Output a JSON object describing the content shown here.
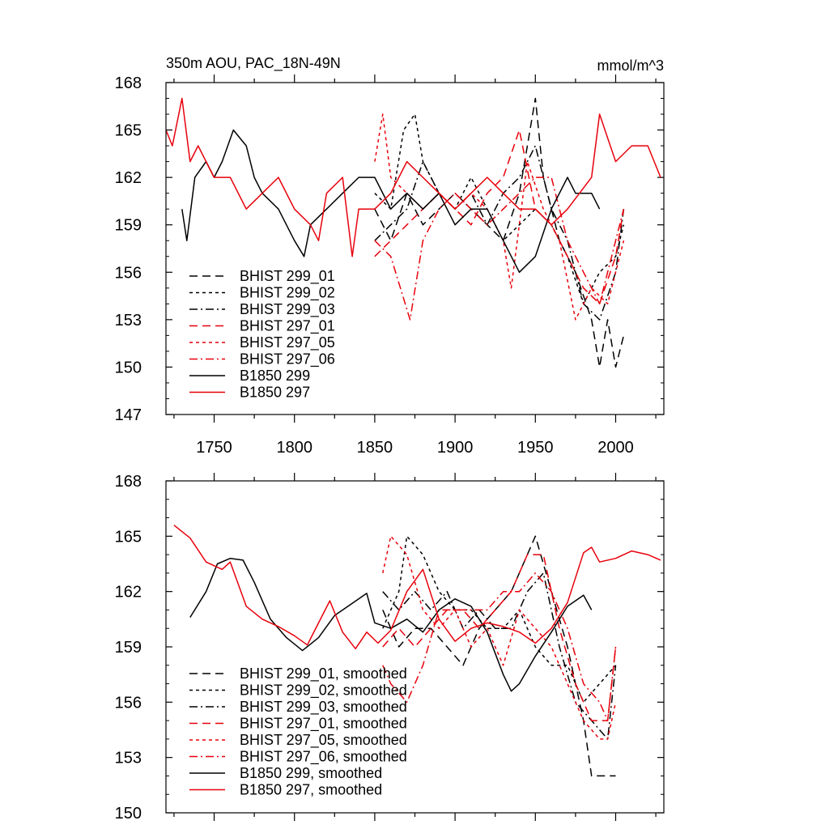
{
  "chart_data": [
    {
      "type": "line",
      "title": "350m AOU, PAC_18N-49N",
      "units": "mmol/m^3",
      "xlim": [
        1720,
        2030
      ],
      "ylim": [
        147,
        168
      ],
      "yticks": [
        147,
        150,
        153,
        156,
        159,
        162,
        165,
        168
      ],
      "yticks_labels": [
        "147",
        "150",
        "153",
        "156",
        "159",
        "162",
        "165",
        "168"
      ],
      "xticks": [
        1750,
        1800,
        1850,
        1900,
        1950,
        2000
      ],
      "xticks_labels": [
        "1750",
        "1800",
        "1850",
        "1900",
        "1950",
        "2000"
      ],
      "legend_position": "bottom-left",
      "series": [
        {
          "name": "BHIST 299_01",
          "color": "#000000",
          "dash": "long-dash",
          "x": [
            1850,
            1860,
            1870,
            1880,
            1890,
            1900,
            1910,
            1920,
            1930,
            1940,
            1950,
            1955,
            1965,
            1975,
            1985,
            1990,
            1995,
            2000,
            2005
          ],
          "y": [
            160,
            158,
            161,
            159,
            160,
            161,
            160,
            159,
            158,
            161,
            167,
            162,
            158,
            156,
            153,
            150,
            153,
            150,
            152
          ]
        },
        {
          "name": "BHIST 299_02",
          "color": "#000000",
          "dash": "short-dash",
          "x": [
            1850,
            1860,
            1868,
            1875,
            1880,
            1890,
            1900,
            1910,
            1920,
            1930,
            1940,
            1950,
            1960,
            1970,
            1980,
            1990,
            2000,
            2005
          ],
          "y": [
            161,
            160,
            165,
            166,
            163,
            161,
            160,
            162,
            160,
            158,
            159,
            160,
            159,
            157,
            154,
            156,
            157,
            159
          ]
        },
        {
          "name": "BHIST 299_03",
          "color": "#000000",
          "dash": "dash-dot",
          "x": [
            1850,
            1860,
            1870,
            1880,
            1890,
            1900,
            1910,
            1920,
            1930,
            1940,
            1950,
            1960,
            1970,
            1980,
            1990,
            2000,
            2005
          ],
          "y": [
            158,
            159,
            160,
            163,
            161,
            160,
            161,
            159,
            161,
            162,
            164,
            160,
            158,
            154,
            153,
            156,
            160
          ]
        },
        {
          "name": "BHIST 297_01",
          "color": "#e8000b",
          "dash": "long-dash",
          "x": [
            1850,
            1860,
            1870,
            1880,
            1890,
            1900,
            1910,
            1920,
            1930,
            1940,
            1950,
            1960,
            1970,
            1980,
            1990,
            2000,
            2005
          ],
          "y": [
            157,
            158,
            159,
            160,
            161,
            160,
            159,
            161,
            162,
            165,
            160,
            159,
            157,
            155,
            154,
            157,
            160
          ]
        },
        {
          "name": "BHIST 297_05",
          "color": "#e8000b",
          "dash": "short-dash",
          "x": [
            1850,
            1855,
            1860,
            1870,
            1880,
            1890,
            1900,
            1910,
            1920,
            1930,
            1935,
            1945,
            1955,
            1965,
            1975,
            1985,
            1995,
            2005
          ],
          "y": [
            163,
            166,
            162,
            161,
            160,
            161,
            160,
            161,
            160,
            158,
            155,
            163,
            160,
            158,
            153,
            155,
            154,
            158
          ]
        },
        {
          "name": "BHIST 297_06",
          "color": "#e8000b",
          "dash": "dash-dot",
          "x": [
            1850,
            1860,
            1866,
            1872,
            1880,
            1890,
            1900,
            1910,
            1920,
            1930,
            1940,
            1950,
            1960,
            1970,
            1980,
            1990,
            2000,
            2005
          ],
          "y": [
            158,
            157,
            155,
            153,
            158,
            160,
            161,
            160,
            159,
            160,
            161,
            162,
            162,
            158,
            156,
            154,
            158,
            160
          ]
        },
        {
          "name": "B1850 299",
          "color": "#000000",
          "dash": "solid",
          "x": [
            1730,
            1733,
            1738,
            1745,
            1750,
            1755,
            1762,
            1770,
            1775,
            1780,
            1790,
            1800,
            1806,
            1810,
            1820,
            1830,
            1840,
            1850,
            1860,
            1870,
            1880,
            1890,
            1900,
            1910,
            1920,
            1930,
            1940,
            1950,
            1960,
            1970,
            1975,
            1985,
            1990
          ],
          "y": [
            160,
            158,
            162,
            163,
            162,
            163,
            165,
            164,
            162,
            161,
            160,
            158,
            157,
            159,
            160,
            161,
            162,
            162,
            160,
            161,
            160,
            161,
            159,
            160,
            160,
            158,
            156,
            157,
            160,
            162,
            161,
            161,
            160
          ]
        },
        {
          "name": "B1850 297",
          "color": "#e8000b",
          "dash": "solid",
          "x": [
            1720,
            1724,
            1730,
            1735,
            1740,
            1750,
            1760,
            1770,
            1780,
            1790,
            1800,
            1810,
            1815,
            1820,
            1830,
            1836,
            1840,
            1850,
            1860,
            1870,
            1880,
            1890,
            1900,
            1910,
            1920,
            1930,
            1940,
            1950,
            1960,
            1970,
            1985,
            1990,
            2000,
            2010,
            2020,
            2028
          ],
          "y": [
            165,
            164,
            167,
            163,
            164,
            162,
            162,
            160,
            161,
            162,
            160,
            159,
            158,
            161,
            162,
            157,
            160,
            160,
            161,
            163,
            162,
            161,
            160,
            161,
            162,
            161,
            160,
            160,
            159,
            160,
            162,
            166,
            163,
            164,
            164,
            162
          ]
        }
      ]
    },
    {
      "type": "line",
      "xlim": [
        1720,
        2030
      ],
      "ylim": [
        150,
        168
      ],
      "yticks": [
        150,
        153,
        156,
        159,
        162,
        165,
        168
      ],
      "yticks_labels": [
        "150",
        "153",
        "156",
        "159",
        "162",
        "165",
        "168"
      ],
      "xticks": [
        1750,
        1800,
        1850,
        1900,
        1950,
        2000
      ],
      "legend_position": "bottom-left",
      "series": [
        {
          "name": "BHIST 299_01, smoothed",
          "color": "#000000",
          "dash": "long-dash",
          "x": [
            1855,
            1865,
            1875,
            1885,
            1895,
            1905,
            1915,
            1925,
            1935,
            1945,
            1950,
            1960,
            1970,
            1980,
            1985,
            1990,
            1995,
            2000
          ],
          "y": [
            161,
            159,
            160,
            160,
            159,
            158,
            160,
            161,
            162,
            164,
            165,
            162,
            159,
            155,
            152,
            152,
            152,
            152
          ]
        },
        {
          "name": "BHIST 299_02, smoothed",
          "color": "#000000",
          "dash": "short-dash",
          "x": [
            1855,
            1865,
            1870,
            1880,
            1890,
            1900,
            1910,
            1920,
            1930,
            1940,
            1950,
            1960,
            1970,
            1980,
            1990,
            2000
          ],
          "y": [
            160,
            162,
            165,
            164,
            162,
            161,
            161,
            160,
            160,
            161,
            159,
            158,
            158,
            156,
            157,
            158
          ]
        },
        {
          "name": "BHIST 299_03, smoothed",
          "color": "#000000",
          "dash": "dash-dot",
          "x": [
            1855,
            1865,
            1875,
            1885,
            1895,
            1905,
            1915,
            1925,
            1935,
            1945,
            1955,
            1965,
            1975,
            1985,
            1995,
            2000
          ],
          "y": [
            162,
            161,
            162,
            161,
            162,
            160,
            161,
            160,
            160,
            162,
            163,
            159,
            156,
            155,
            154,
            158
          ]
        },
        {
          "name": "BHIST 297_01, smoothed",
          "color": "#e8000b",
          "dash": "long-dash",
          "x": [
            1855,
            1865,
            1875,
            1885,
            1895,
            1905,
            1915,
            1925,
            1935,
            1945,
            1955,
            1965,
            1975,
            1985,
            1995,
            2000
          ],
          "y": [
            159,
            160,
            159,
            160,
            161,
            161,
            160,
            161,
            162,
            164,
            164,
            160,
            157,
            155,
            155,
            159
          ]
        },
        {
          "name": "BHIST 297_05, smoothed",
          "color": "#e8000b",
          "dash": "short-dash",
          "x": [
            1855,
            1860,
            1870,
            1880,
            1890,
            1900,
            1910,
            1920,
            1930,
            1940,
            1950,
            1960,
            1970,
            1980,
            1990,
            1995,
            2000
          ],
          "y": [
            163,
            165,
            164,
            161,
            160,
            161,
            159,
            160,
            158,
            161,
            160,
            159,
            157,
            155,
            154,
            154,
            156
          ]
        },
        {
          "name": "BHIST 297_06, smoothed",
          "color": "#e8000b",
          "dash": "dash-dot",
          "x": [
            1855,
            1860,
            1870,
            1880,
            1890,
            1900,
            1910,
            1920,
            1930,
            1940,
            1950,
            1960,
            1970,
            1980,
            1990,
            1995,
            2000
          ],
          "y": [
            158,
            157,
            156,
            158,
            161,
            161,
            161,
            161,
            162,
            162,
            163,
            162,
            160,
            157,
            156,
            155,
            159
          ]
        },
        {
          "name": "B1850 299, smoothed",
          "color": "#000000",
          "dash": "solid",
          "x": [
            1735,
            1745,
            1752,
            1760,
            1768,
            1775,
            1785,
            1795,
            1805,
            1815,
            1825,
            1835,
            1845,
            1850,
            1860,
            1870,
            1880,
            1890,
            1900,
            1910,
            1920,
            1930,
            1935,
            1940,
            1950,
            1960,
            1970,
            1980,
            1985
          ],
          "y": [
            160.6,
            162,
            163.5,
            163.8,
            163.7,
            162.5,
            160.5,
            159.5,
            158.8,
            159.5,
            160.7,
            161.3,
            161.9,
            160.3,
            160,
            160.5,
            159.8,
            161,
            161.6,
            161.2,
            159.8,
            157.5,
            156.6,
            157,
            158.5,
            159.8,
            161.2,
            161.8,
            161
          ]
        },
        {
          "name": "B1850 297, smoothed",
          "color": "#e8000b",
          "dash": "solid",
          "x": [
            1725,
            1735,
            1745,
            1755,
            1760,
            1765,
            1770,
            1780,
            1790,
            1800,
            1808,
            1815,
            1822,
            1830,
            1838,
            1845,
            1852,
            1860,
            1870,
            1880,
            1890,
            1900,
            1910,
            1920,
            1930,
            1940,
            1950,
            1960,
            1970,
            1980,
            1985,
            1990,
            2000,
            2010,
            2020,
            2028
          ],
          "y": [
            165.6,
            164.9,
            163.6,
            163.2,
            163.6,
            162.4,
            161.2,
            160.5,
            160.1,
            159.6,
            159.1,
            160.3,
            161.5,
            159.8,
            158.9,
            159.8,
            159.2,
            159.9,
            162,
            163.2,
            160.5,
            159.3,
            160,
            160.3,
            160.1,
            159.8,
            159.2,
            160,
            161.4,
            164.1,
            164.4,
            163.6,
            163.8,
            164.2,
            164,
            163.7
          ]
        }
      ]
    }
  ]
}
